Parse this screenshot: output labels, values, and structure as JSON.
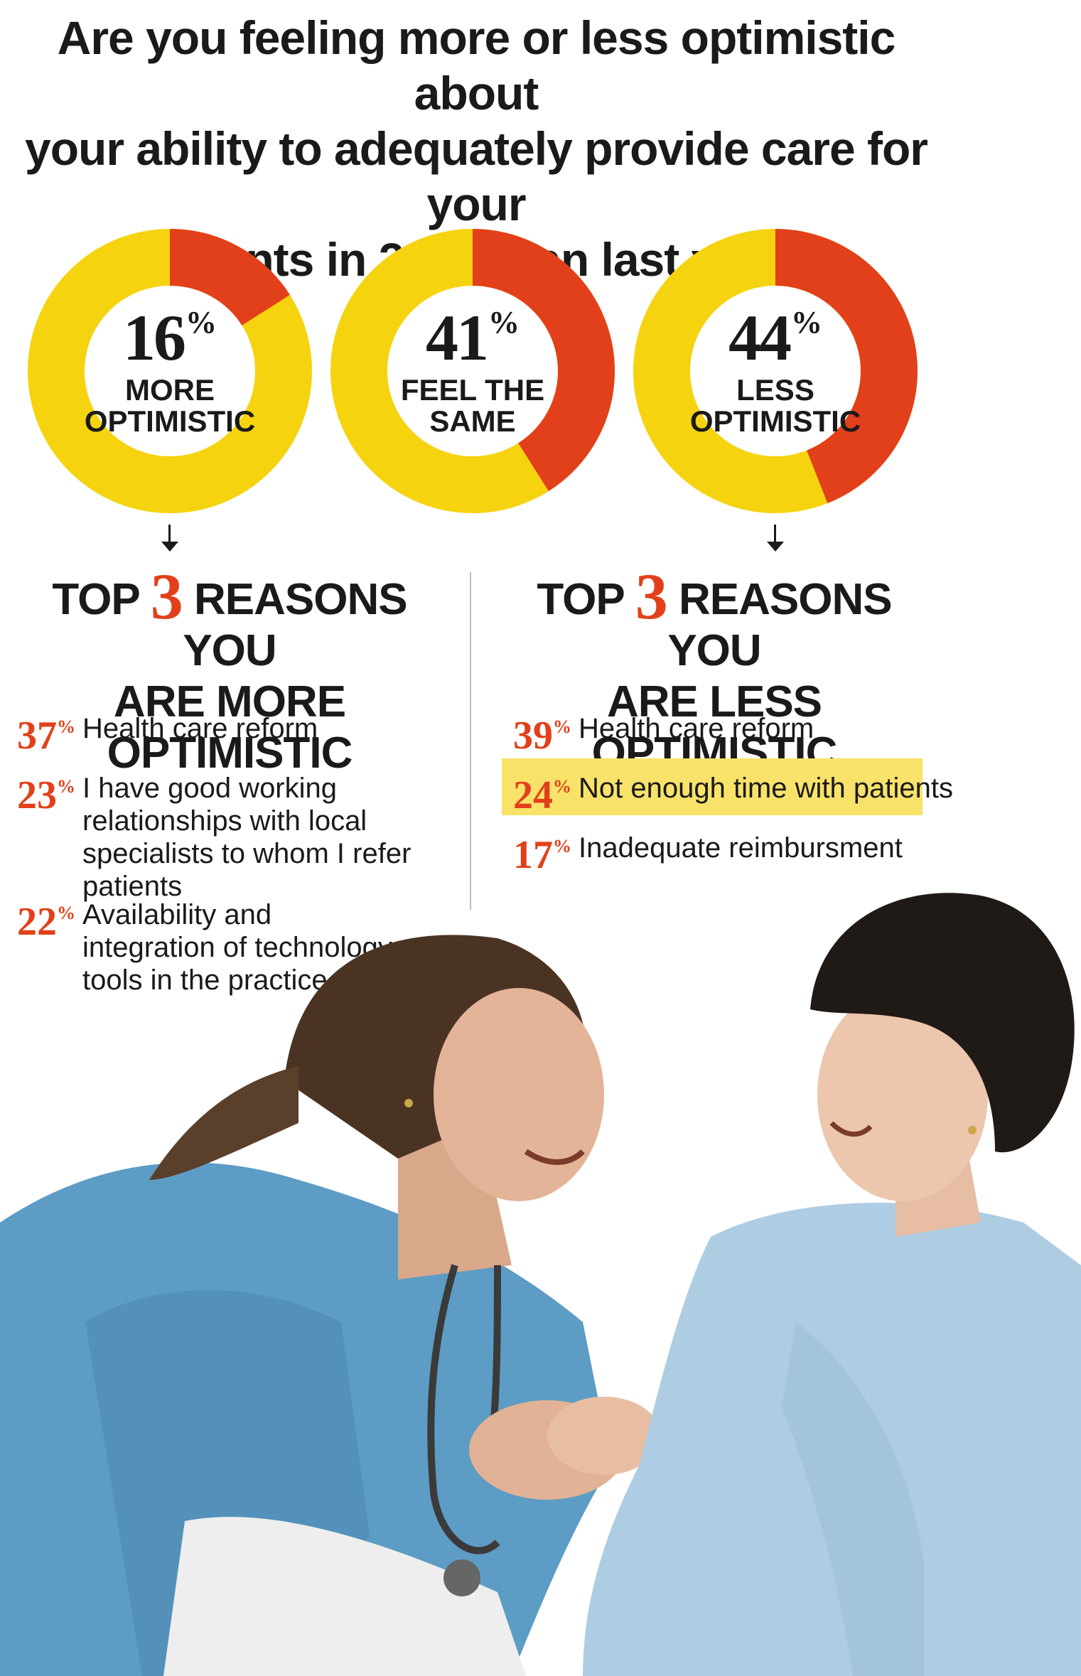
{
  "title": {
    "line1": "Are you feeling more or less optimistic about",
    "line2": "your ability to adequately provide care for your",
    "line3": "patients in 2014 than last year?"
  },
  "colors": {
    "yellow": "#f5d30f",
    "orange": "#e2401a",
    "text": "#1a1a1a",
    "highlight": "#f8e26a"
  },
  "chart_data": {
    "type": "pie",
    "style": "donut",
    "series": [
      {
        "value": 16,
        "label_top": "MORE",
        "label_bottom": "OPTIMISTIC"
      },
      {
        "value": 41,
        "label_top": "FEEL THE",
        "label_bottom": "SAME"
      },
      {
        "value": 44,
        "label_top": "LESS",
        "label_bottom": "OPTIMISTIC"
      }
    ],
    "unit": "%"
  },
  "donuts": [
    {
      "num": "16",
      "pct": "%",
      "line1": "MORE",
      "line2": "OPTIMISTIC"
    },
    {
      "num": "41",
      "pct": "%",
      "line1": "FEEL THE",
      "line2": "SAME"
    },
    {
      "num": "44",
      "pct": "%",
      "line1": "LESS",
      "line2": "OPTIMISTIC"
    }
  ],
  "left": {
    "title_pre": "TOP ",
    "title_num": "3",
    "title_post": " REASONS YOU",
    "title_line2": "ARE MORE OPTIMISTIC",
    "reasons": [
      {
        "pct": "37",
        "sym": "%",
        "text": "Health care reform"
      },
      {
        "pct": "23",
        "sym": "%",
        "text": "I have good working relationships with local specialists to whom I refer patients"
      },
      {
        "pct": "22",
        "sym": "%",
        "text": "Availability and integration of technology tools in the practice"
      }
    ]
  },
  "right": {
    "title_pre": "TOP ",
    "title_num": "3",
    "title_post": " REASONS YOU",
    "title_line2": "ARE LESS OPTIMISTIC",
    "reasons": [
      {
        "pct": "39",
        "sym": "%",
        "text": "Health care reform"
      },
      {
        "pct": "24",
        "sym": "%",
        "text": "Not enough time with patients"
      },
      {
        "pct": "17",
        "sym": "%",
        "text": "Inadequate reimbursment"
      }
    ]
  }
}
